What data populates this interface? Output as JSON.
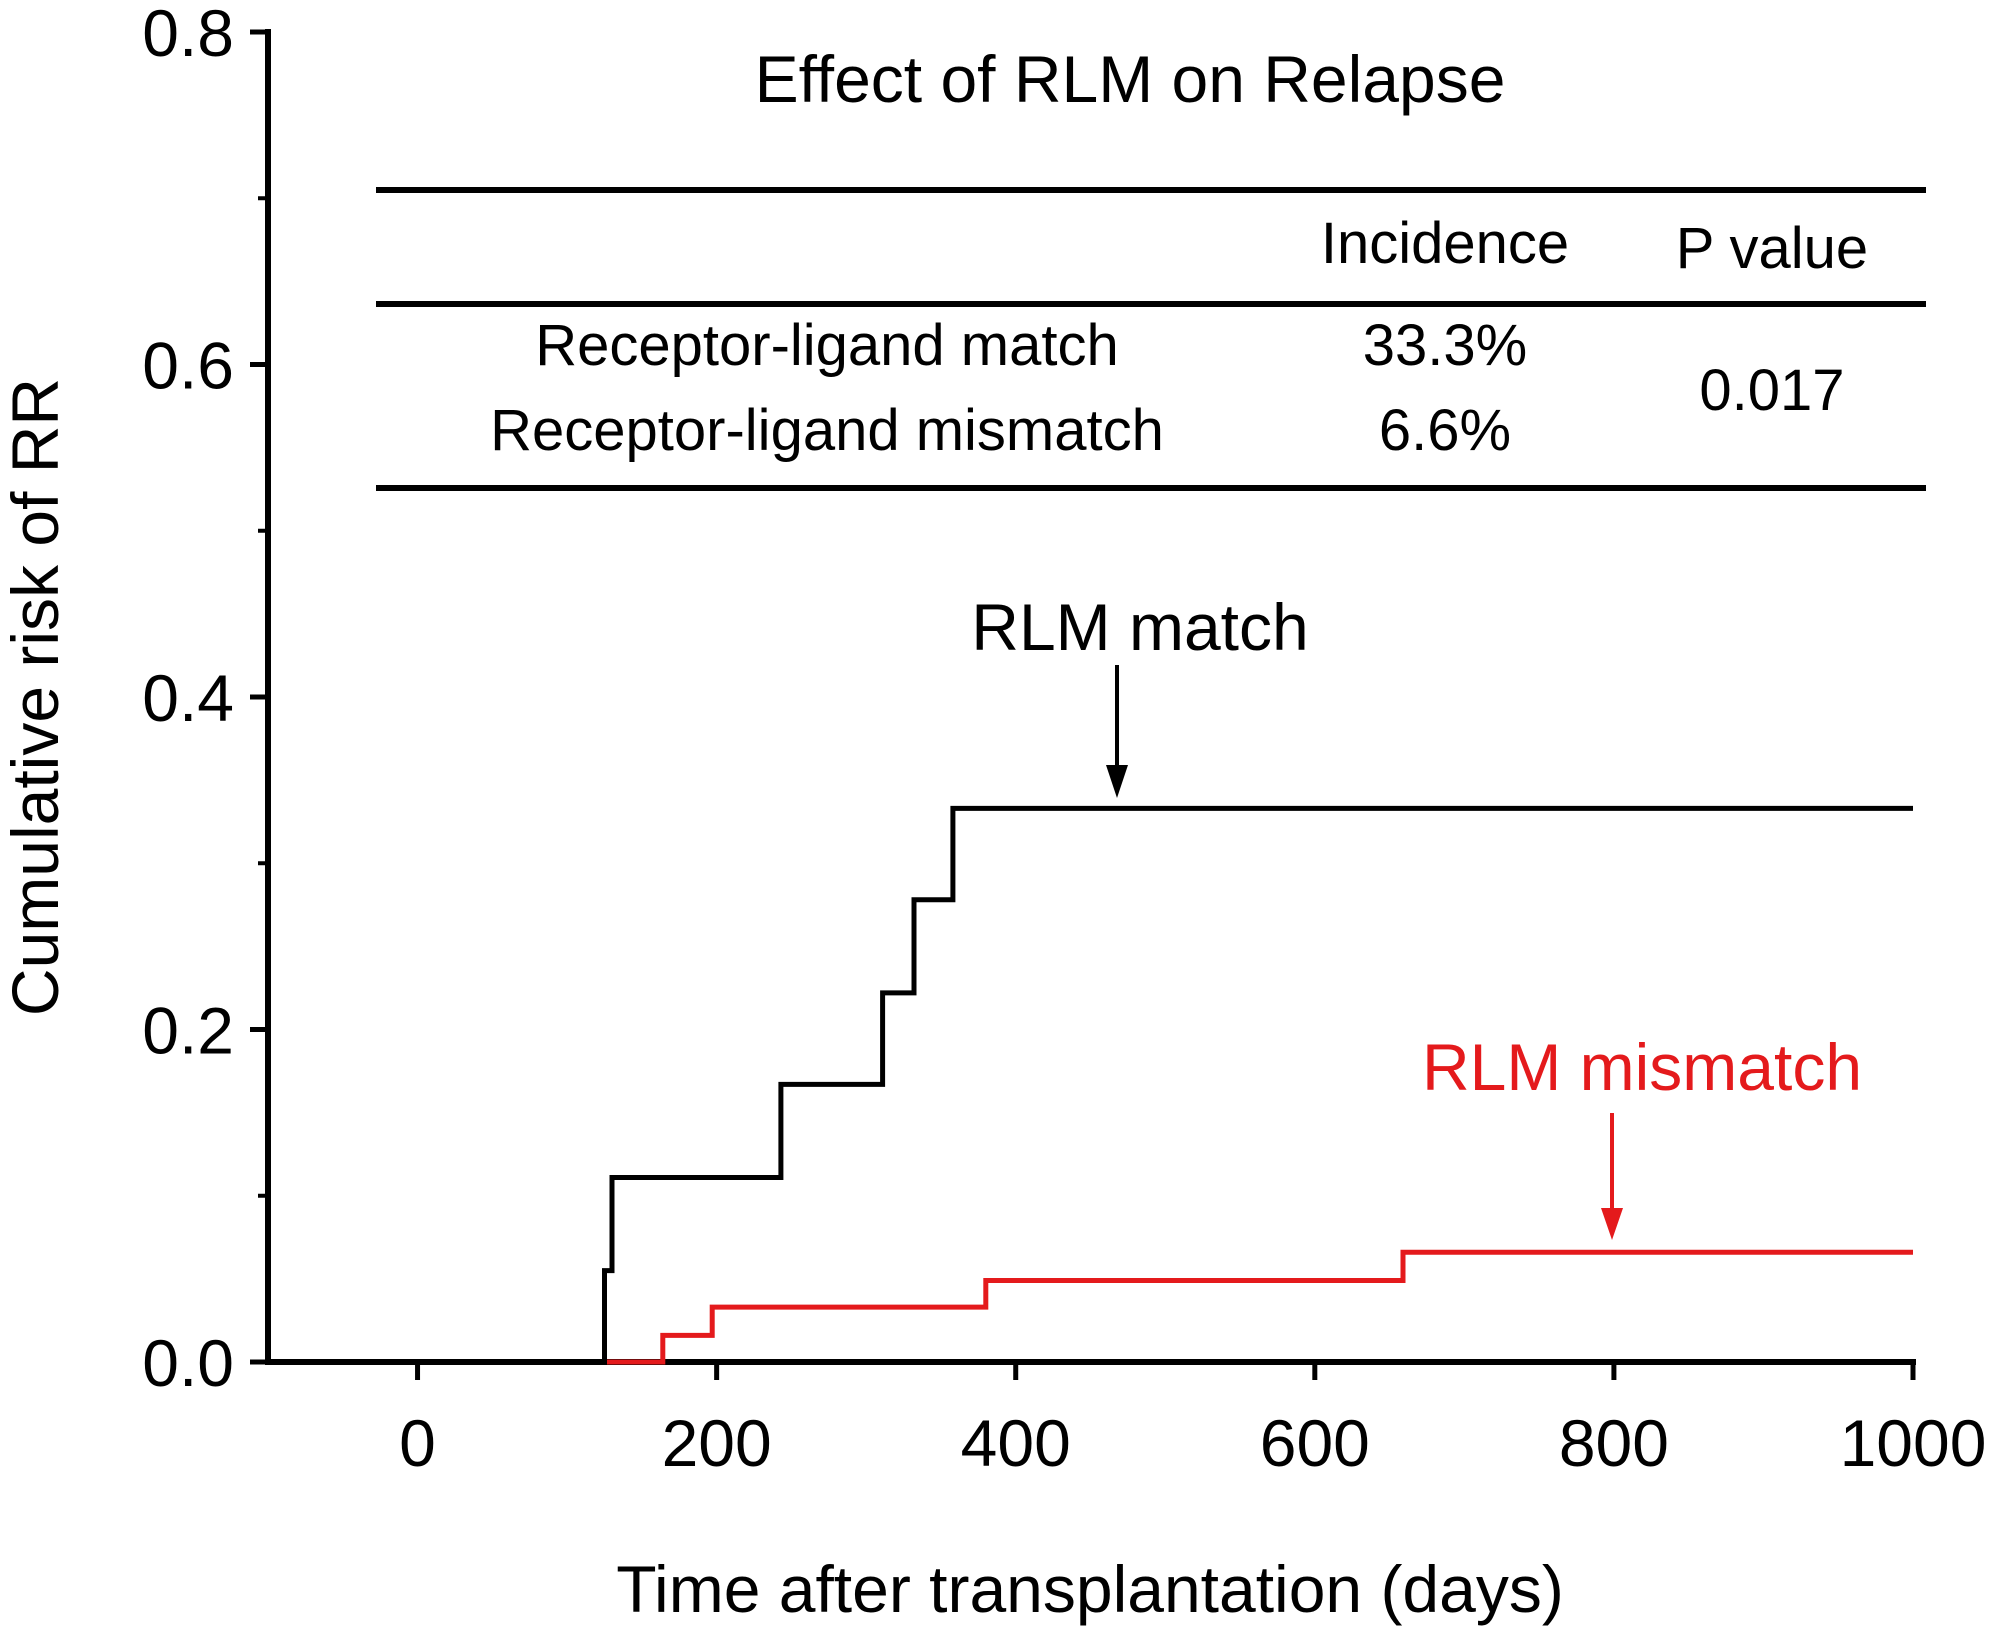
{
  "chart_data": {
    "type": "line",
    "subtype": "step",
    "title": "Effect of RLM on Relapse",
    "xlabel": "Time after transplantation (days)",
    "ylabel": "Cumulative risk of RR",
    "xlim": [
      -100,
      1000
    ],
    "ylim": [
      0,
      0.8
    ],
    "xticks": [
      0,
      200,
      400,
      600,
      800,
      1000
    ],
    "xtick_labels": [
      "0",
      "200",
      "400",
      "600",
      "800",
      "1000"
    ],
    "yticks": [
      0.0,
      0.2,
      0.4,
      0.6,
      0.8
    ],
    "ytick_labels": [
      "0.0",
      "0.2",
      "0.4",
      "0.6",
      "0.8"
    ],
    "series": [
      {
        "name": "RLM match",
        "color": "#000000",
        "points": [
          [
            0,
            0
          ],
          [
            125,
            0
          ],
          [
            125,
            0.055
          ],
          [
            130,
            0.055
          ],
          [
            130,
            0.111
          ],
          [
            243,
            0.111
          ],
          [
            243,
            0.167
          ],
          [
            311,
            0.167
          ],
          [
            311,
            0.222
          ],
          [
            332,
            0.222
          ],
          [
            332,
            0.278
          ],
          [
            358,
            0.278
          ],
          [
            358,
            0.333
          ],
          [
            1000,
            0.333
          ]
        ]
      },
      {
        "name": "RLM mismatch",
        "color": "#e41a1c",
        "points": [
          [
            0,
            0
          ],
          [
            164,
            0
          ],
          [
            164,
            0.016
          ],
          [
            197,
            0.016
          ],
          [
            197,
            0.033
          ],
          [
            380,
            0.033
          ],
          [
            380,
            0.049
          ],
          [
            659,
            0.049
          ],
          [
            659,
            0.066
          ],
          [
            1000,
            0.066
          ]
        ]
      }
    ],
    "annotations": [
      {
        "text": "RLM match",
        "color": "#000000",
        "points_to": [
          484,
          0.339
        ]
      },
      {
        "text": "RLM mismatch",
        "color": "#e41a1c",
        "points_to": [
          806,
          0.073
        ]
      }
    ],
    "inset_table": {
      "headers": [
        "",
        "Incidence",
        "P value"
      ],
      "rows": [
        {
          "group": "Receptor-ligand match",
          "incidence": "33.3%"
        },
        {
          "group": "Receptor-ligand mismatch",
          "incidence": "6.6%"
        }
      ],
      "p_value": "0.017"
    }
  }
}
